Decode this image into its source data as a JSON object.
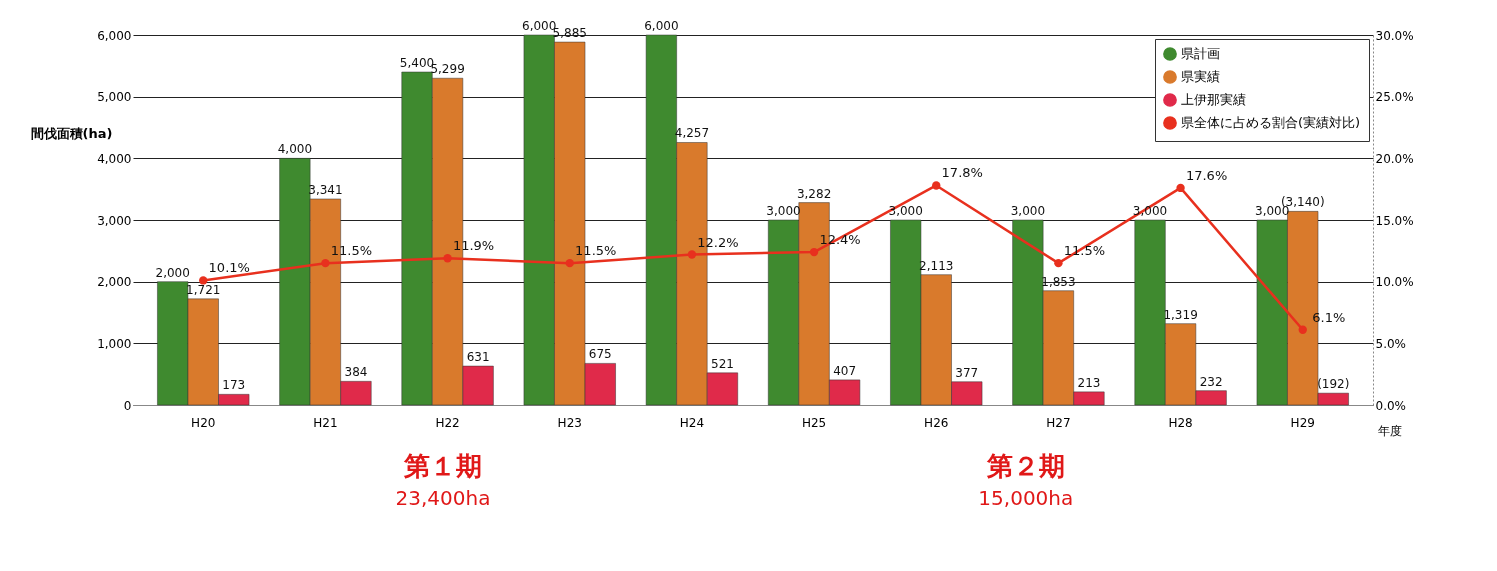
{
  "chart_data": {
    "type": "bar",
    "ylabel": "間伐面積(ha)",
    "xlabel": "年度",
    "categories": [
      "H20",
      "H21",
      "H22",
      "H23",
      "H24",
      "H25",
      "H26",
      "H27",
      "H28",
      "H29"
    ],
    "series": [
      {
        "name": "県計画",
        "color": "#3f8a2f",
        "values": [
          2000,
          4000,
          5400,
          6000,
          6000,
          3000,
          3000,
          3000,
          3000,
          3000
        ],
        "value_labels": [
          "2,000",
          "4,000",
          "5,400",
          "6,000",
          "6,000",
          "3,000",
          "3,000",
          "3,000",
          "3,000",
          "3,000"
        ]
      },
      {
        "name": "県実績",
        "color": "#d97a2c",
        "values": [
          1721,
          3341,
          5299,
          5885,
          4257,
          3282,
          2113,
          1853,
          1319,
          3140
        ],
        "value_labels": [
          "1,721",
          "3,341",
          "5,299",
          "5,885",
          "4,257",
          "3,282",
          "2,113",
          "1,853",
          "1,319",
          "(3,140)"
        ]
      },
      {
        "name": "上伊那実績",
        "color": "#e02a4a",
        "values": [
          173,
          384,
          631,
          675,
          521,
          407,
          377,
          213,
          232,
          192
        ],
        "value_labels": [
          "173",
          "384",
          "631",
          "675",
          "521",
          "407",
          "377",
          "213",
          "232",
          "(192)"
        ]
      },
      {
        "name": "県全体に占める割合(実績対比)",
        "type": "line",
        "axis": "y2",
        "color": "#e8301e",
        "values": [
          10.1,
          11.5,
          11.9,
          11.5,
          12.2,
          12.4,
          17.8,
          11.5,
          17.6,
          6.1
        ],
        "value_labels": [
          "10.1%",
          "11.5%",
          "11.9%",
          "11.5%",
          "12.2%",
          "12.4%",
          "17.8%",
          "11.5%",
          "17.6%",
          "6.1%"
        ]
      }
    ],
    "ylim": [
      0,
      6000
    ],
    "yticks": [
      0,
      {
        "value": 1000,
        "label": "1,000"
      },
      {
        "value": 2000,
        "label": "2,000"
      },
      {
        "value": 3000,
        "label": "3,000"
      },
      {
        "value": 4000,
        "label": "4,000"
      },
      {
        "value": 5000,
        "label": "5,000"
      },
      {
        "value": 6000,
        "label": "6,000"
      }
    ],
    "y2lim": [
      0,
      30
    ],
    "y2ticks": [
      {
        "value": 0,
        "label": "0.0%"
      },
      {
        "value": 5,
        "label": "5.0%"
      },
      {
        "value": 10,
        "label": "10.0%"
      },
      {
        "value": 15,
        "label": "15.0%"
      },
      {
        "value": 20,
        "label": "20.0%"
      },
      {
        "value": 25,
        "label": "25.0%"
      },
      {
        "value": 30,
        "label": "30.0%"
      }
    ],
    "grid": "y",
    "legend": "top right",
    "marker": "circle",
    "line_style": "solid",
    "annotations": [
      "第１期",
      "23,400ha",
      "第２期",
      "15,000ha"
    ]
  }
}
